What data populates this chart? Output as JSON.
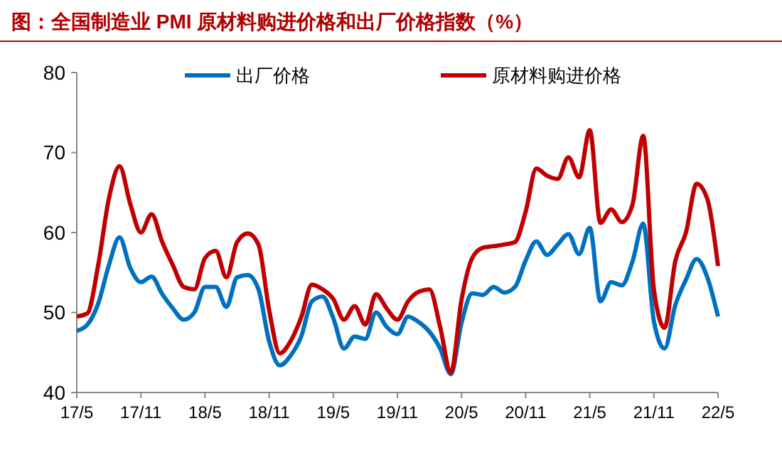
{
  "chart_data": {
    "type": "line",
    "title": "图：全国制造业 PMI 原材料购进价格和出厂价格指数（%）",
    "categories": [
      "17/5",
      null,
      null,
      null,
      null,
      null,
      "17/11",
      null,
      null,
      null,
      null,
      null,
      "18/5",
      null,
      null,
      null,
      null,
      null,
      "18/11",
      null,
      null,
      null,
      null,
      null,
      "19/5",
      null,
      null,
      null,
      null,
      null,
      "19/11",
      null,
      null,
      null,
      null,
      null,
      "20/5",
      null,
      null,
      null,
      null,
      null,
      "20/11",
      null,
      null,
      null,
      null,
      null,
      "21/5",
      null,
      null,
      null,
      null,
      null,
      "21/11",
      null,
      null,
      null,
      null,
      null,
      "22/5"
    ],
    "series": [
      {
        "name": "出厂价格",
        "color": "#0070c0",
        "values": [
          47.7,
          48.5,
          51.1,
          55.9,
          59.4,
          55.6,
          53.8,
          54.5,
          52.3,
          50.5,
          49.1,
          50.0,
          53.2,
          53.2,
          50.7,
          54.4,
          54.7,
          52.9,
          46.4,
          43.4,
          44.6,
          47.0,
          51.4,
          52.0,
          49.3,
          45.5,
          47.0,
          46.7,
          50.0,
          48.2,
          47.3,
          49.5,
          48.8,
          47.6,
          45.5,
          42.3,
          48.7,
          52.4,
          52.2,
          53.2,
          52.5,
          53.2,
          56.5,
          58.9,
          57.2,
          58.5,
          59.8,
          57.3,
          60.6,
          51.4,
          53.8,
          53.4,
          56.4,
          61.1,
          48.9,
          45.5,
          50.9,
          54.1,
          56.7,
          54.4,
          49.5
        ]
      },
      {
        "name": "原材料购进价格",
        "color": "#c00000",
        "values": [
          49.5,
          49.9,
          55.9,
          64.2,
          68.3,
          63.6,
          60.0,
          62.3,
          58.8,
          55.9,
          53.2,
          52.9,
          56.8,
          57.7,
          54.4,
          58.8,
          59.9,
          58.5,
          50.3,
          44.9,
          46.4,
          49.4,
          53.5,
          52.9,
          51.7,
          49.1,
          50.8,
          48.5,
          52.3,
          50.5,
          49.1,
          51.4,
          52.6,
          52.9,
          48.2,
          42.5,
          51.6,
          56.8,
          58.1,
          58.3,
          58.5,
          58.8,
          62.6,
          68.0,
          67.1,
          66.7,
          69.4,
          66.9,
          72.8,
          61.2,
          62.9,
          61.3,
          63.5,
          72.1,
          52.9,
          48.1,
          56.4,
          60.0,
          66.1,
          64.2,
          55.8
        ]
      }
    ],
    "ylim": [
      40,
      80
    ],
    "yticks": [
      40,
      50,
      60,
      70,
      80
    ],
    "grid": false,
    "legend": "top",
    "marker": "none",
    "line_style": "solid"
  }
}
